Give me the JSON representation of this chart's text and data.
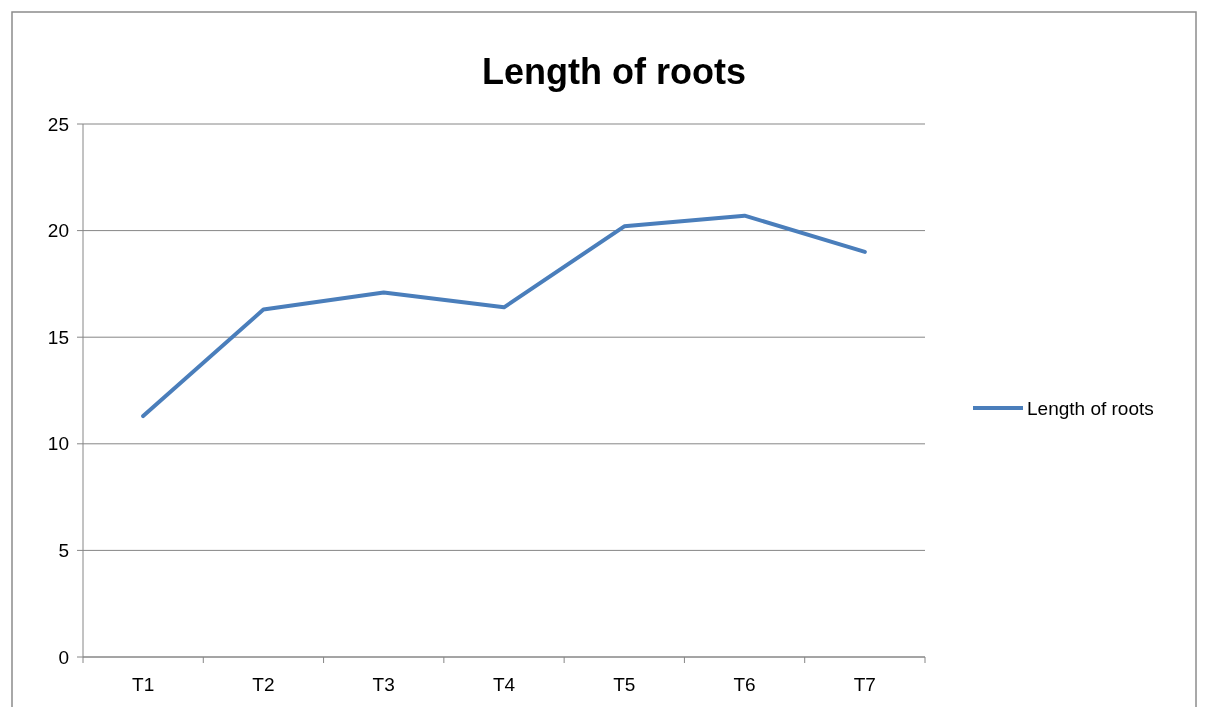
{
  "chart_data": {
    "type": "line",
    "title": "Length of roots",
    "categories": [
      "T1",
      "T2",
      "T3",
      "T4",
      "T5",
      "T6",
      "T7"
    ],
    "series": [
      {
        "name": "Length of roots",
        "color": "#4a7ebb",
        "values": [
          11.3,
          16.3,
          17.1,
          16.4,
          20.2,
          20.7,
          19.0
        ]
      }
    ],
    "ylim": [
      0,
      25
    ],
    "yticks": [
      0,
      5,
      10,
      15,
      20,
      25
    ],
    "grid": "y",
    "legend": "right",
    "marker": "none",
    "line_style": "solid"
  }
}
